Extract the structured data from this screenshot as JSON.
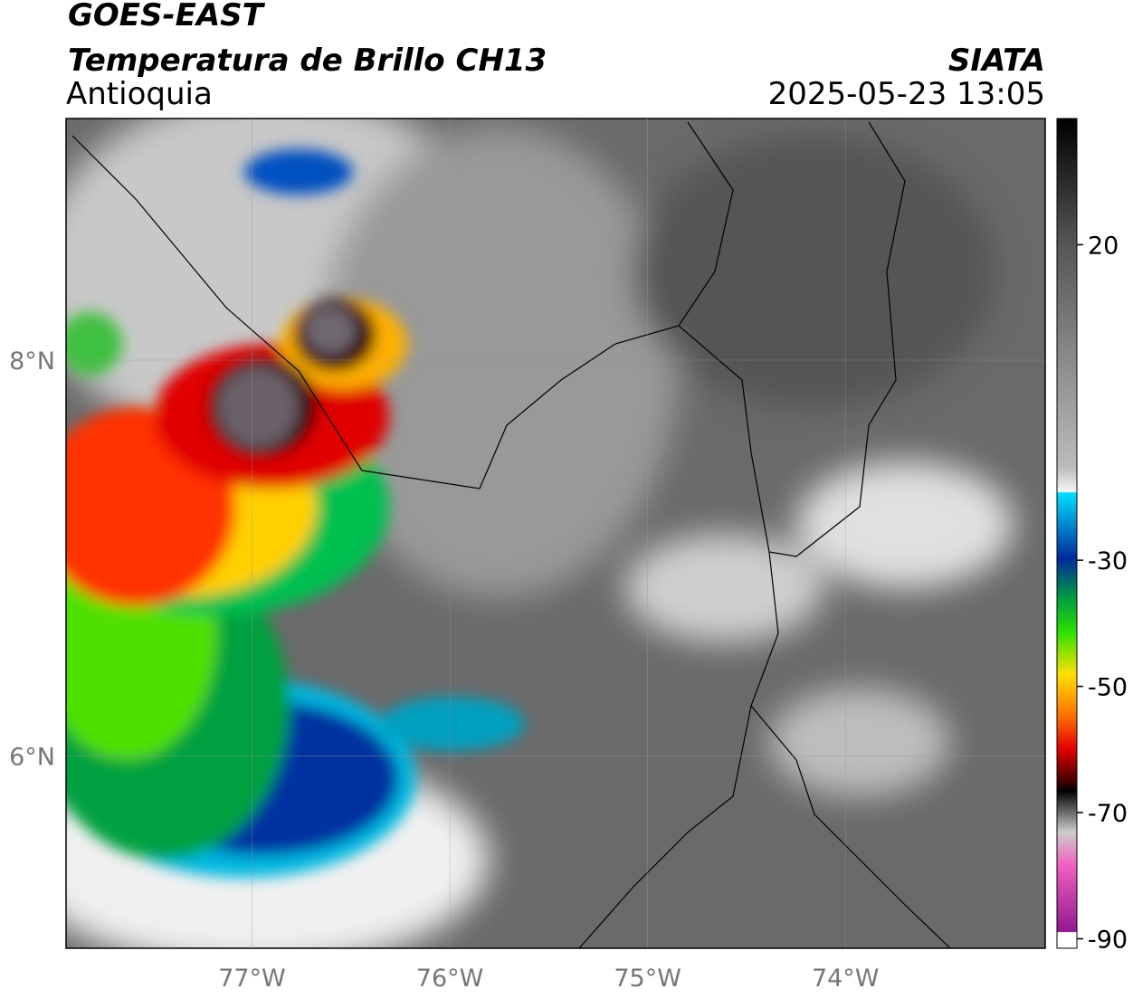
{
  "header": {
    "line1": "GOES-EAST",
    "line2": "Temperatura de Brillo CH13",
    "region": "Antioquia",
    "agency": "SIATA",
    "datetime": "2025-05-23 13:05"
  },
  "map": {
    "xlim": [
      -77.94,
      -72.99
    ],
    "ylim": [
      5.03,
      9.22
    ],
    "xticks": [
      {
        "value": -77,
        "label": "77°W"
      },
      {
        "value": -76,
        "label": "76°W"
      },
      {
        "value": -75,
        "label": "75°W"
      },
      {
        "value": -74,
        "label": "74°W"
      }
    ],
    "yticks": [
      {
        "value": 6,
        "label": "6°N"
      },
      {
        "value": 8,
        "label": "8°N"
      }
    ],
    "grid": true
  },
  "colorbar": {
    "lim": [
      -91.5,
      40
    ],
    "ticks": [
      20,
      -30,
      -50,
      -70,
      -90
    ]
  }
}
